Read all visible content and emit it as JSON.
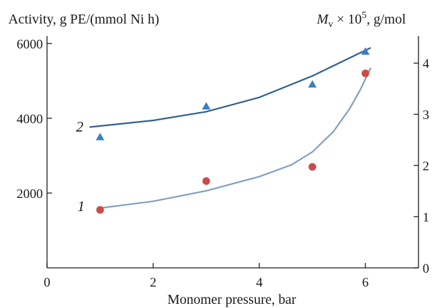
{
  "chart_data": {
    "type": "scatter",
    "title": "",
    "xlabel": "Monomer pressure, bar",
    "ylabel_left": "Activity, g PE/(mmol Ni h)",
    "ylabel_right": {
      "symbol": "M",
      "subscript": "v",
      "times": " × 10",
      "superscript": "5",
      "unit": ", g/mol"
    },
    "xlim": [
      0,
      7
    ],
    "ylim_left": [
      0,
      6200
    ],
    "ylim_right": [
      0,
      4.53
    ],
    "x_ticks": [
      0,
      2,
      4,
      6
    ],
    "y_left_ticks": [
      2000,
      4000,
      6000
    ],
    "y_right_ticks": [
      0,
      1,
      2,
      3,
      4
    ],
    "grid": false,
    "series": [
      {
        "name": "1",
        "axis": "left",
        "marker": "circle",
        "marker_color": "#cc4b4b",
        "line_color": "#7f9fbf",
        "points": [
          {
            "x": 1,
            "y": 1550
          },
          {
            "x": 3,
            "y": 2320
          },
          {
            "x": 5,
            "y": 2700
          },
          {
            "x": 6,
            "y": 5200
          }
        ],
        "fit_curve": [
          [
            0.95,
            1590
          ],
          [
            2,
            1780
          ],
          [
            3,
            2060
          ],
          [
            4,
            2440
          ],
          [
            4.6,
            2750
          ],
          [
            5,
            3100
          ],
          [
            5.4,
            3650
          ],
          [
            5.7,
            4250
          ],
          [
            5.9,
            4750
          ],
          [
            6.1,
            5350
          ]
        ]
      },
      {
        "name": "2",
        "axis": "right",
        "marker": "triangle",
        "marker_color": "#3b7fc4",
        "line_color": "#2f5f8f",
        "points": [
          {
            "x": 1,
            "y": 2.55
          },
          {
            "x": 3,
            "y": 3.15
          },
          {
            "x": 5,
            "y": 3.58
          },
          {
            "x": 6,
            "y": 4.22
          }
        ],
        "fit_curve": [
          [
            0.8,
            2.75
          ],
          [
            2,
            2.88
          ],
          [
            3,
            3.05
          ],
          [
            4,
            3.33
          ],
          [
            5,
            3.75
          ],
          [
            6.1,
            4.3
          ]
        ]
      }
    ]
  }
}
